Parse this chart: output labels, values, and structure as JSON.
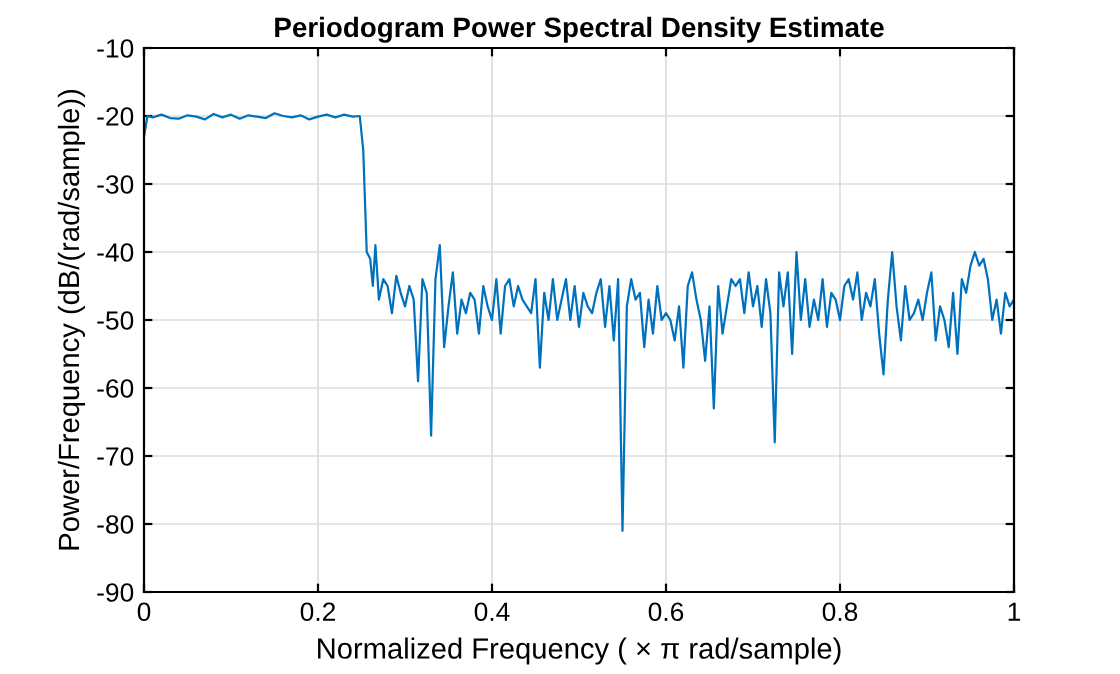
{
  "chart_data": {
    "type": "line",
    "title": "Periodogram Power Spectral Density Estimate",
    "xlabel": "Normalized Frequency ( × π rad/sample)",
    "ylabel": "Power/Frequency (dB/(rad/sample))",
    "x": [
      0,
      0.004,
      0.01,
      0.02,
      0.03,
      0.04,
      0.05,
      0.06,
      0.07,
      0.08,
      0.09,
      0.1,
      0.11,
      0.12,
      0.13,
      0.14,
      0.15,
      0.16,
      0.17,
      0.18,
      0.19,
      0.2,
      0.21,
      0.22,
      0.23,
      0.24,
      0.248,
      0.252,
      0.256,
      0.26,
      0.263,
      0.266,
      0.27,
      0.275,
      0.28,
      0.285,
      0.29,
      0.295,
      0.3,
      0.305,
      0.31,
      0.315,
      0.32,
      0.325,
      0.33,
      0.335,
      0.34,
      0.345,
      0.35,
      0.355,
      0.36,
      0.365,
      0.37,
      0.375,
      0.38,
      0.385,
      0.39,
      0.395,
      0.4,
      0.405,
      0.41,
      0.415,
      0.42,
      0.425,
      0.43,
      0.435,
      0.44,
      0.445,
      0.45,
      0.455,
      0.46,
      0.465,
      0.47,
      0.475,
      0.48,
      0.485,
      0.49,
      0.495,
      0.5,
      0.505,
      0.51,
      0.515,
      0.52,
      0.525,
      0.53,
      0.535,
      0.54,
      0.545,
      0.55,
      0.555,
      0.56,
      0.565,
      0.57,
      0.575,
      0.58,
      0.585,
      0.59,
      0.595,
      0.6,
      0.605,
      0.61,
      0.615,
      0.62,
      0.625,
      0.63,
      0.635,
      0.64,
      0.645,
      0.65,
      0.655,
      0.66,
      0.665,
      0.67,
      0.675,
      0.68,
      0.685,
      0.69,
      0.695,
      0.7,
      0.705,
      0.71,
      0.715,
      0.72,
      0.725,
      0.73,
      0.735,
      0.74,
      0.745,
      0.75,
      0.755,
      0.76,
      0.765,
      0.77,
      0.775,
      0.78,
      0.785,
      0.79,
      0.795,
      0.8,
      0.805,
      0.81,
      0.815,
      0.82,
      0.825,
      0.83,
      0.835,
      0.84,
      0.845,
      0.85,
      0.855,
      0.86,
      0.865,
      0.87,
      0.875,
      0.88,
      0.885,
      0.89,
      0.895,
      0.9,
      0.905,
      0.91,
      0.915,
      0.92,
      0.925,
      0.93,
      0.935,
      0.94,
      0.945,
      0.95,
      0.955,
      0.96,
      0.965,
      0.97,
      0.975,
      0.98,
      0.985,
      0.99,
      0.995,
      1.0
    ],
    "series": [
      {
        "color": "#0072bd",
        "values": [
          -23,
          -20,
          -20.2,
          -19.8,
          -20.3,
          -20.4,
          -19.9,
          -20.1,
          -20.5,
          -19.7,
          -20.2,
          -19.8,
          -20.4,
          -19.9,
          -20.1,
          -20.3,
          -19.6,
          -20.0,
          -20.2,
          -19.9,
          -20.5,
          -20.1,
          -19.8,
          -20.2,
          -19.8,
          -20.1,
          -20,
          -25,
          -40,
          -41,
          -45,
          -39,
          -47,
          -44,
          -45,
          -49,
          -43.5,
          -46,
          -48,
          -45,
          -47,
          -59,
          -44,
          -46,
          -67,
          -44,
          -39,
          -54,
          -48,
          -43,
          -52,
          -47,
          -49,
          -46,
          -47,
          -52,
          -45,
          -48,
          -50,
          -44,
          -52,
          -45,
          -44,
          -48,
          -45,
          -47,
          -48,
          -49,
          -44,
          -57,
          -46,
          -50,
          -44,
          -50,
          -47,
          -44,
          -50,
          -45,
          -51,
          -46,
          -48,
          -49,
          -46,
          -44,
          -51,
          -45,
          -53,
          -44,
          -81,
          -48,
          -44,
          -47,
          -46,
          -54,
          -47,
          -52,
          -45,
          -50,
          -49,
          -50,
          -53,
          -48,
          -57,
          -45,
          -43,
          -47,
          -50,
          -56,
          -48,
          -63,
          -45,
          -52,
          -48,
          -44,
          -45,
          -44,
          -49,
          -43,
          -48,
          -45,
          -51,
          -44,
          -49,
          -68,
          -43,
          -48,
          -43,
          -55,
          -40,
          -50,
          -44,
          -51,
          -47,
          -50,
          -44,
          -51,
          -46,
          -47,
          -50,
          -45,
          -44,
          -47,
          -43,
          -50,
          -46,
          -48,
          -44,
          -52,
          -58,
          -47,
          -40,
          -48,
          -53,
          -45,
          -50,
          -49,
          -47,
          -50,
          -46,
          -43,
          -53,
          -48,
          -50,
          -54,
          -46,
          -55,
          -44,
          -46,
          -42,
          -40,
          -42,
          -41,
          -44,
          -50,
          -47,
          -52,
          -46,
          -48,
          -47
        ]
      }
    ],
    "xlim": [
      0,
      1
    ],
    "xticks": [
      0,
      0.2,
      0.4,
      0.6,
      0.8,
      1
    ],
    "ylim": [
      -90,
      -10
    ],
    "yticks": [
      -90,
      -80,
      -70,
      -60,
      -50,
      -40,
      -30,
      -20,
      -10
    ],
    "grid": true,
    "marker": "none",
    "line_style": "solid"
  }
}
